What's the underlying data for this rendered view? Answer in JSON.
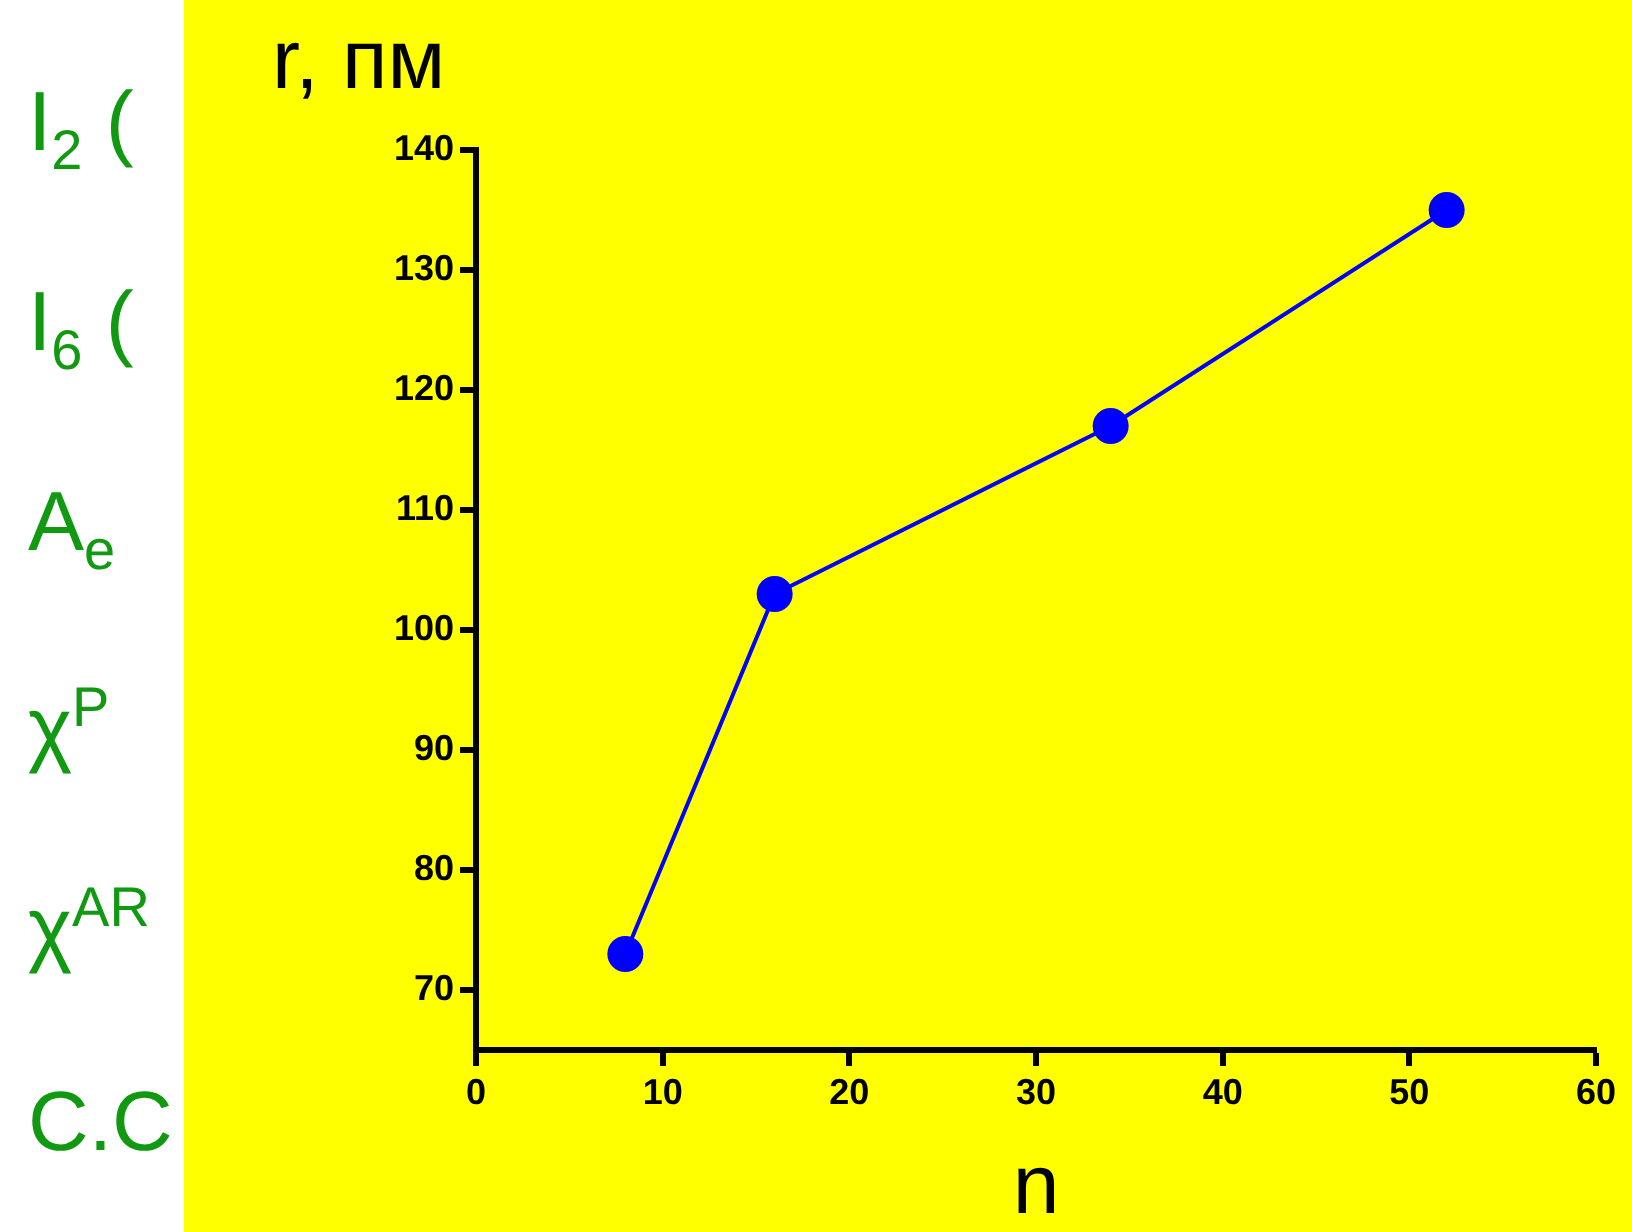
{
  "chart_data": {
    "type": "line",
    "xlabel": "n",
    "ylabel": "r, пм",
    "x": [
      8,
      16,
      34,
      52
    ],
    "series": [
      {
        "color": "#0000ff",
        "values": [
          73,
          103,
          117,
          135
        ]
      }
    ],
    "xlim": [
      0,
      60
    ],
    "xticks": [
      0,
      10,
      20,
      30,
      40,
      50,
      60
    ],
    "ylim": [
      65,
      140
    ],
    "yticks": [
      70,
      80,
      90,
      100,
      110,
      120,
      130,
      140
    ],
    "grid": false,
    "legend": false,
    "marker": "circle",
    "line_style": "solid",
    "annotations": [
      "I$_{2}$ (",
      "I$_{6}$ (",
      "A$_{e}$",
      "χ$^{P}$",
      "χ$^{AR}$",
      "C.C"
    ]
  }
}
